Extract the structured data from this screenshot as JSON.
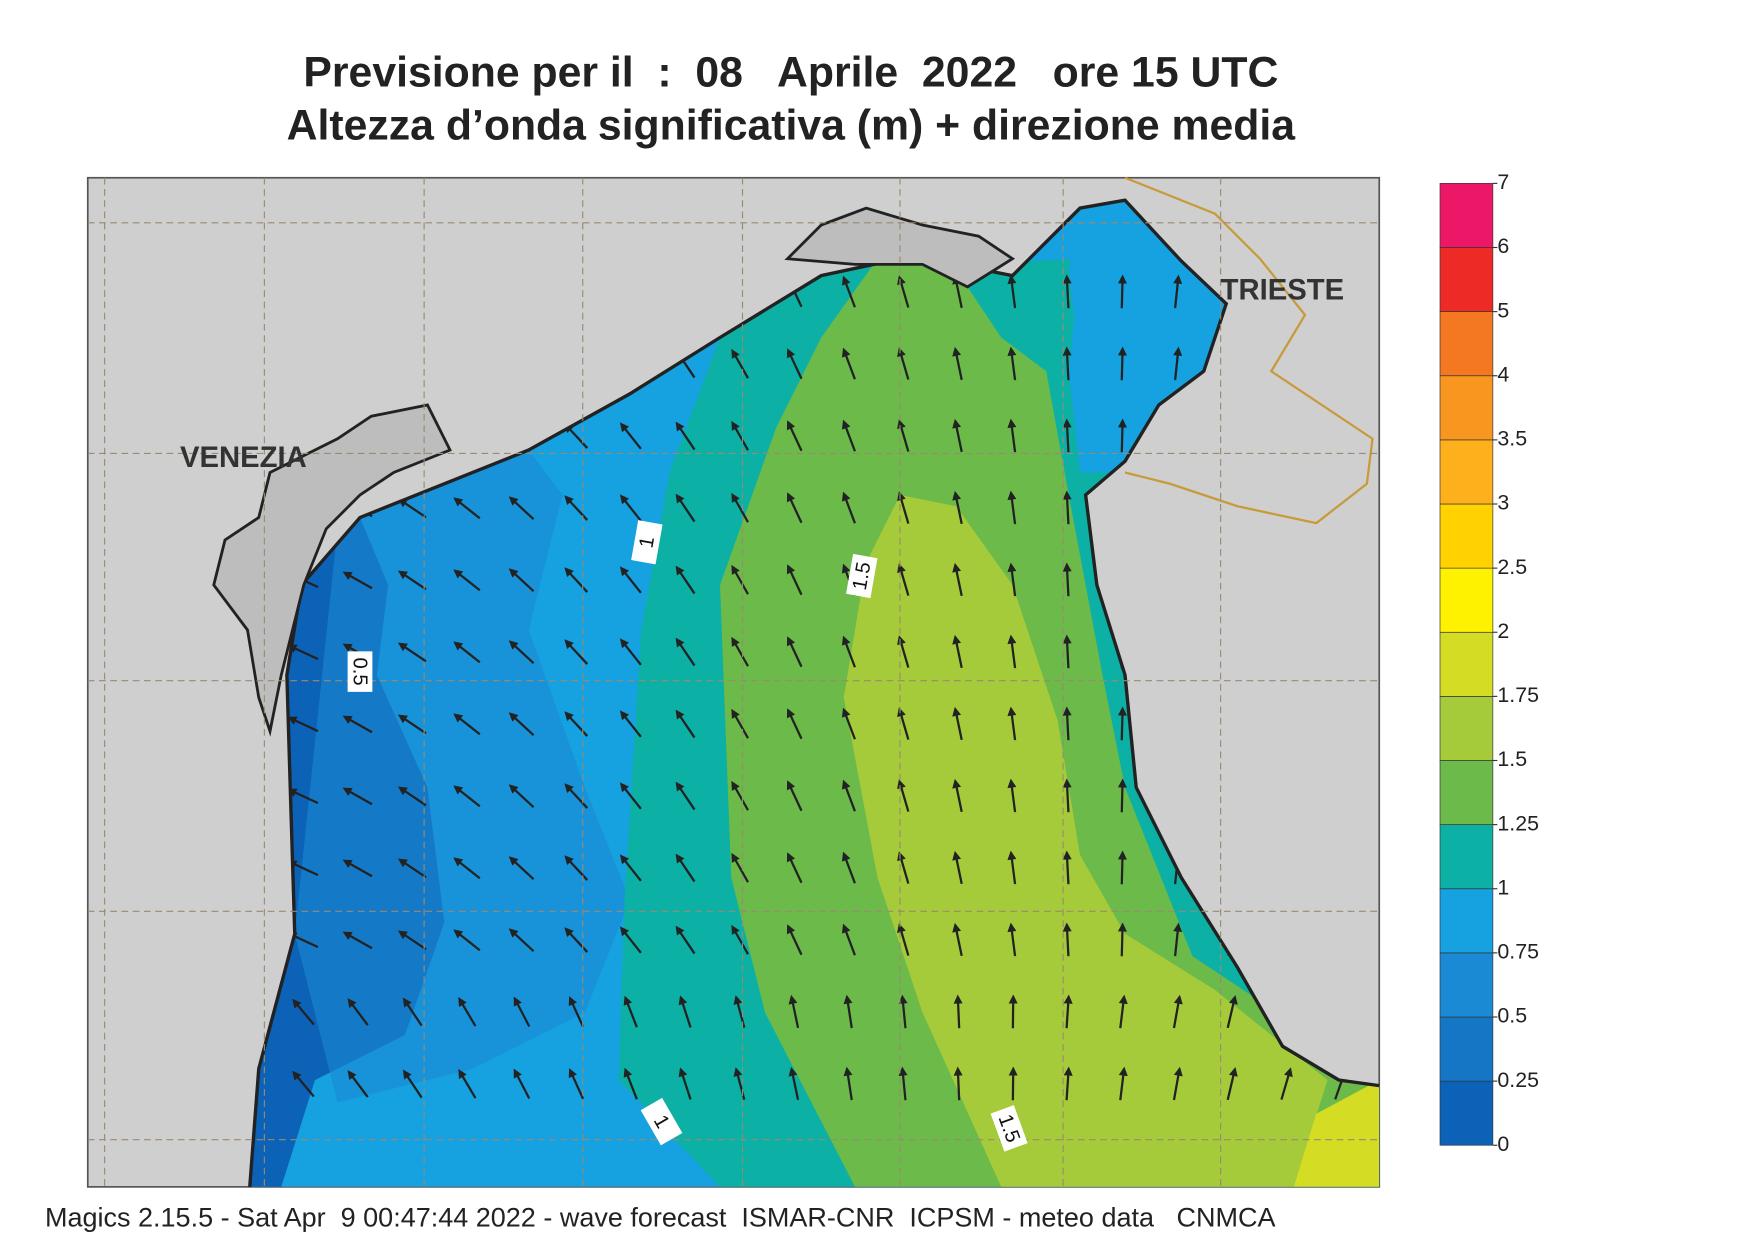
{
  "header": {
    "title_line1": "Previsione per il  :  08   Aprile  2022   ore 15 UTC",
    "title_line2": "Altezza d’onda significativa (m) + direzione media"
  },
  "map": {
    "places": [
      "VENEZIA",
      "TRIESTE"
    ],
    "contour_labels": [
      "1",
      "1.5",
      "0.5",
      "1",
      "1.5"
    ]
  },
  "legend": {
    "levels": [
      0,
      0.25,
      0.5,
      0.75,
      1,
      1.25,
      1.5,
      1.75,
      2,
      2.5,
      3,
      3.5,
      4,
      5,
      6,
      7
    ],
    "colors": [
      "#0b62b6",
      "#1576c6",
      "#1b8ad4",
      "#16a1e1",
      "#0cb0a4",
      "#6cba4a",
      "#a5cb3a",
      "#d4dc24",
      "#fff200",
      "#ffd200",
      "#fdb01c",
      "#f9961f",
      "#f47821",
      "#ed2a26",
      "#ec1766"
    ]
  },
  "footer": "Magics 2.15.5 - Sat Apr  9 00:47:44 2022 - wave forecast  ISMAR-CNR  ICPSM - meteo data   CNMCA"
}
